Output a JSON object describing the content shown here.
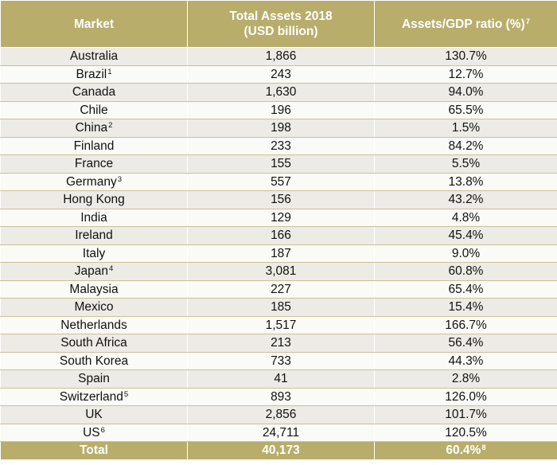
{
  "header": {
    "market": "Market",
    "assets_line1": "Total Assets 2018",
    "assets_line2": "(USD billion)",
    "ratio": "Assets/GDP ratio (%)",
    "ratio_note": "7"
  },
  "rows": [
    {
      "market": "Australia",
      "note": "",
      "assets": "1,866",
      "ratio": "130.7%"
    },
    {
      "market": "Brazil",
      "note": "1",
      "assets": "243",
      "ratio": "12.7%"
    },
    {
      "market": "Canada",
      "note": "",
      "assets": "1,630",
      "ratio": "94.0%"
    },
    {
      "market": "Chile",
      "note": "",
      "assets": "196",
      "ratio": "65.5%"
    },
    {
      "market": "China",
      "note": "2",
      "assets": "198",
      "ratio": "1.5%"
    },
    {
      "market": "Finland",
      "note": "",
      "assets": "233",
      "ratio": "84.2%"
    },
    {
      "market": "France",
      "note": "",
      "assets": "155",
      "ratio": "5.5%"
    },
    {
      "market": "Germany",
      "note": "3",
      "assets": "557",
      "ratio": "13.8%"
    },
    {
      "market": "Hong Kong",
      "note": "",
      "assets": "156",
      "ratio": "43.2%"
    },
    {
      "market": "India",
      "note": "",
      "assets": "129",
      "ratio": "4.8%"
    },
    {
      "market": "Ireland",
      "note": "",
      "assets": "166",
      "ratio": "45.4%"
    },
    {
      "market": "Italy",
      "note": "",
      "assets": "187",
      "ratio": "9.0%"
    },
    {
      "market": "Japan",
      "note": "4",
      "assets": "3,081",
      "ratio": "60.8%"
    },
    {
      "market": "Malaysia",
      "note": "",
      "assets": "227",
      "ratio": "65.4%"
    },
    {
      "market": "Mexico",
      "note": "",
      "assets": "185",
      "ratio": "15.4%"
    },
    {
      "market": "Netherlands",
      "note": "",
      "assets": "1,517",
      "ratio": "166.7%"
    },
    {
      "market": "South Africa",
      "note": "",
      "assets": "213",
      "ratio": "56.4%"
    },
    {
      "market": "South Korea",
      "note": "",
      "assets": "733",
      "ratio": "44.3%"
    },
    {
      "market": "Spain",
      "note": "",
      "assets": "41",
      "ratio": "2.8%"
    },
    {
      "market": "Switzerland",
      "note": "5",
      "assets": "893",
      "ratio": "126.0%"
    },
    {
      "market": "UK",
      "note": "",
      "assets": "2,856",
      "ratio": "101.7%"
    },
    {
      "market": "US",
      "note": "6",
      "assets": "24,711",
      "ratio": "120.5%"
    }
  ],
  "total": {
    "label": "Total",
    "assets": "40,173",
    "ratio": "60.4%",
    "ratio_note": "8"
  }
}
